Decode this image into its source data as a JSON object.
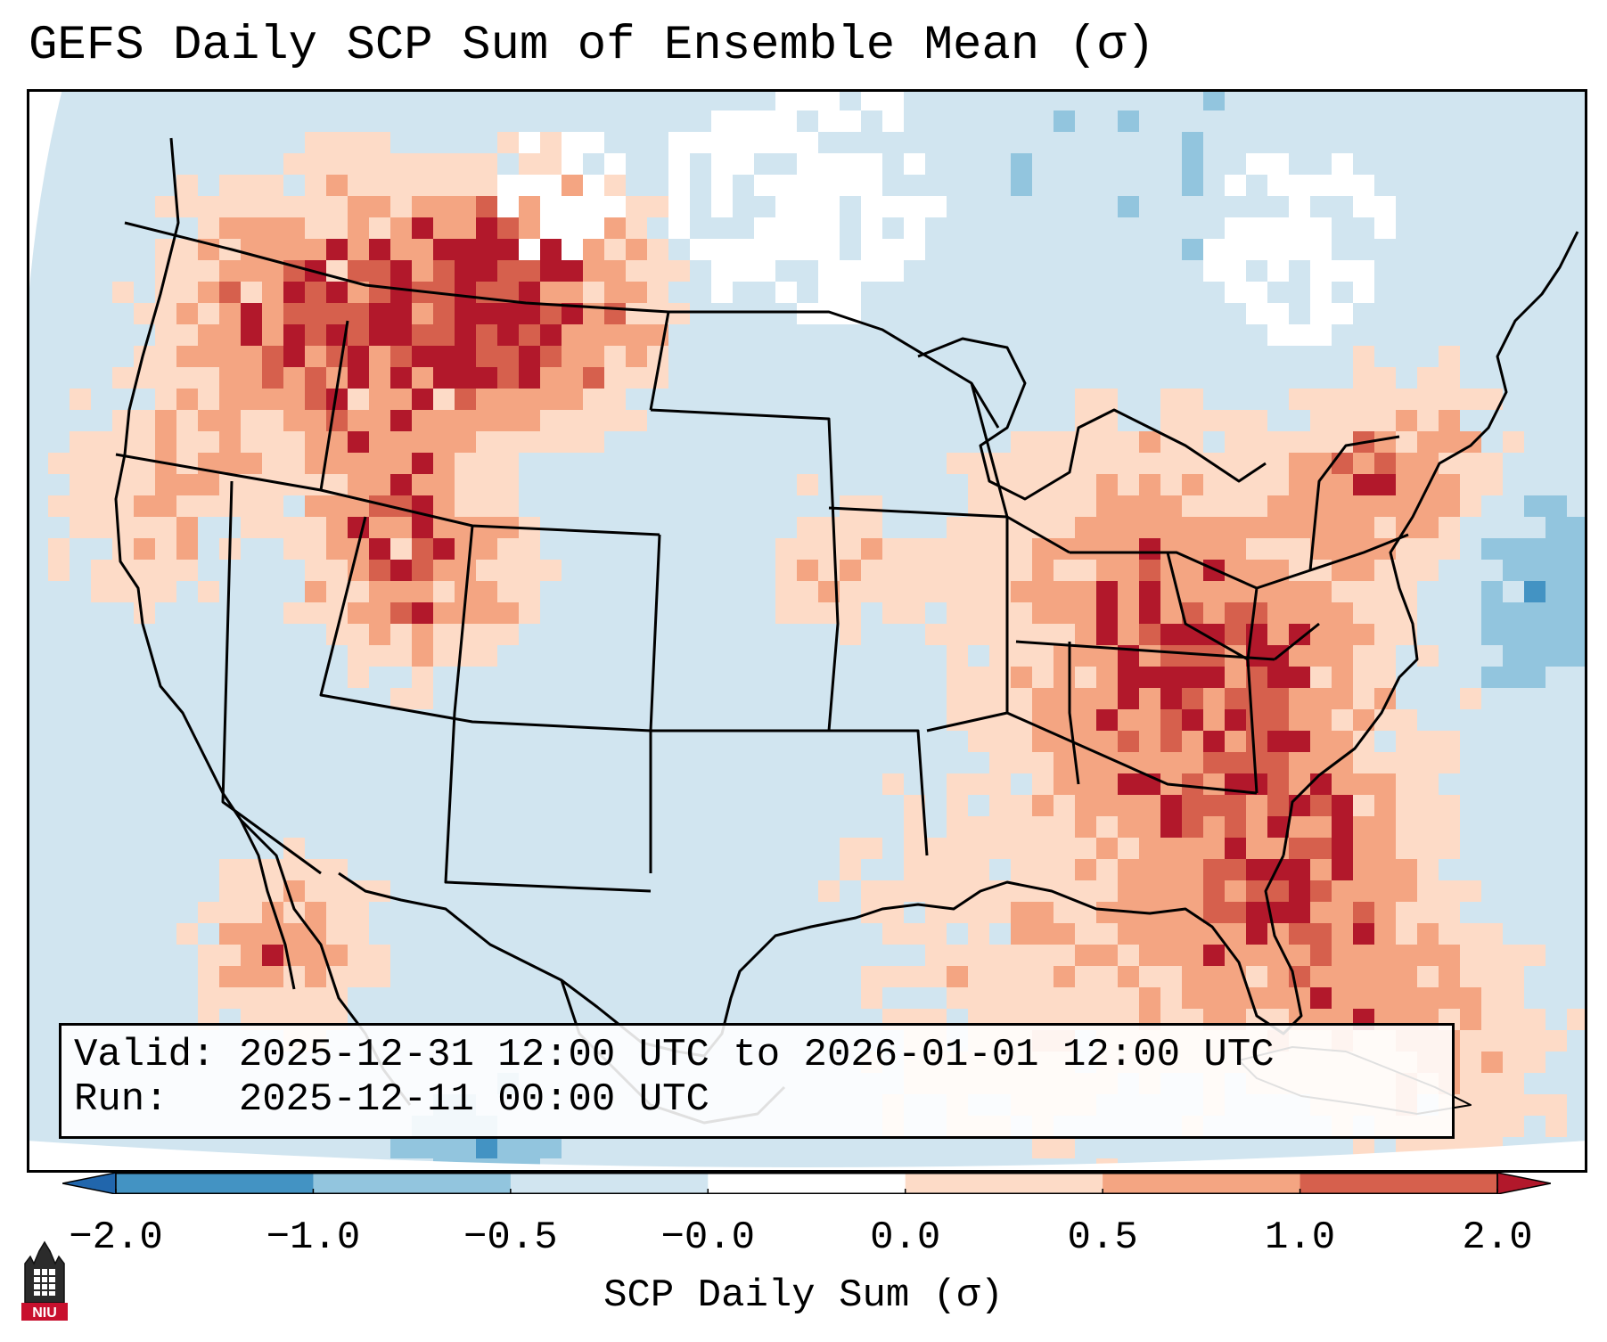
{
  "title": "GEFS Daily SCP Sum of Ensemble Mean (σ)",
  "legend": {
    "valid_label": "Valid:",
    "valid_value": "2025-12-31 12:00 UTC to 2026-01-01 12:00 UTC",
    "run_label": "Run:",
    "run_value": "2025-12-11 00:00 UTC"
  },
  "colorbar": {
    "label": "SCP Daily Sum (σ)",
    "ticks": [
      "−2.0",
      "−1.0",
      "−0.5",
      "−0.0",
      "0.0",
      "0.5",
      "1.0",
      "2.0"
    ],
    "bins": [
      {
        "from": -2.0,
        "to": -1.0,
        "color": "#4393c3"
      },
      {
        "from": -1.0,
        "to": -0.5,
        "color": "#92c5de"
      },
      {
        "from": -0.5,
        "to": -0.0,
        "color": "#d1e5f0"
      },
      {
        "from": -0.0,
        "to": 0.0,
        "color": "#ffffff"
      },
      {
        "from": 0.0,
        "to": 0.5,
        "color": "#fddbc7"
      },
      {
        "from": 0.5,
        "to": 1.0,
        "color": "#f4a582"
      },
      {
        "from": 1.0,
        "to": 2.0,
        "color": "#d6604d"
      }
    ],
    "under_color": "#2166ac",
    "over_color": "#b2182b"
  },
  "map": {
    "background_color": "#d1e5f0",
    "outline_color": "#000000"
  },
  "logo": {
    "name": "niu-logo-icon",
    "text": "NIU",
    "color": "#c8102e"
  }
}
